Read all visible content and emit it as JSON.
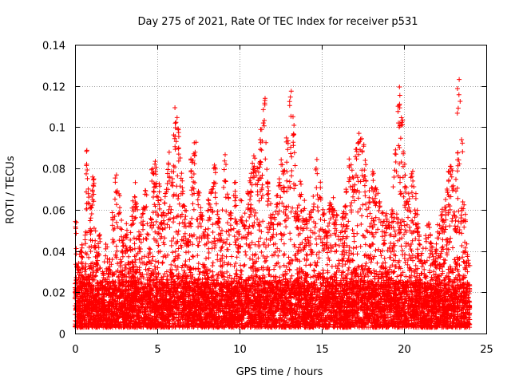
{
  "chart_data": {
    "type": "scatter",
    "title": "Day 275 of 2021, Rate Of TEC Index for receiver p531",
    "xlabel": "GPS time / hours",
    "ylabel": "ROTI / TECUs",
    "xlim": [
      0,
      25
    ],
    "ylim": [
      0,
      0.14
    ],
    "xticks": [
      0,
      5,
      10,
      15,
      20,
      25
    ],
    "xtick_labels": [
      "0",
      "5",
      "10",
      "15",
      "20",
      "25"
    ],
    "yticks": [
      0,
      0.02,
      0.04,
      0.06,
      0.08,
      0.1,
      0.12,
      0.14
    ],
    "ytick_labels": [
      "0",
      "0.02",
      "0.04",
      "0.06",
      "0.08",
      "0.1",
      "0.12",
      "0.14"
    ],
    "grid": true,
    "marker": "plus",
    "color": "#ff0000",
    "series": [
      {
        "x": [
          0.05,
          0.2,
          0.4,
          0.55,
          0.7,
          0.9,
          1.1,
          1.3,
          1.5,
          1.7,
          1.9,
          2.1,
          2.3,
          2.5,
          2.7,
          2.9,
          3.1,
          3.3,
          3.5,
          3.7,
          3.9,
          4.1,
          4.3,
          4.5,
          4.7,
          4.9,
          5.1,
          5.3,
          5.5,
          5.7,
          5.9,
          6.1,
          6.3,
          6.5,
          6.7,
          6.9,
          7.1,
          7.3,
          7.5,
          7.7,
          7.9,
          8.1,
          8.3,
          8.5,
          8.7,
          8.9,
          9.1,
          9.3,
          9.5,
          9.7,
          9.9,
          10.1,
          10.3,
          10.5,
          10.7,
          10.9,
          11.1,
          11.3,
          11.5,
          11.7,
          11.9,
          12.1,
          12.3,
          12.5,
          12.7,
          12.9,
          13.1,
          13.3,
          13.5,
          13.7,
          13.9,
          14.1,
          14.3,
          14.5,
          14.7,
          14.9,
          15.1,
          15.3,
          15.5,
          15.7,
          15.9,
          16.1,
          16.3,
          16.5,
          16.7,
          16.9,
          17.1,
          17.3,
          17.5,
          17.7,
          17.9,
          18.1,
          18.3,
          18.5,
          18.7,
          18.9,
          19.1,
          19.3,
          19.5,
          19.7,
          19.9,
          20.1,
          20.3,
          20.5,
          20.7,
          20.9,
          21.1,
          21.3,
          21.5,
          21.7,
          21.9,
          22.1,
          22.3,
          22.5,
          22.7,
          22.9,
          23.1,
          23.3,
          23.5,
          23.7,
          23.9
        ],
        "y": [
          0.055,
          0.035,
          0.045,
          0.025,
          0.093,
          0.06,
          0.077,
          0.04,
          0.05,
          0.03,
          0.045,
          0.035,
          0.06,
          0.08,
          0.07,
          0.045,
          0.055,
          0.04,
          0.065,
          0.075,
          0.05,
          0.06,
          0.07,
          0.045,
          0.08,
          0.085,
          0.075,
          0.06,
          0.07,
          0.09,
          0.085,
          0.11,
          0.1,
          0.08,
          0.06,
          0.05,
          0.085,
          0.095,
          0.07,
          0.06,
          0.05,
          0.065,
          0.07,
          0.085,
          0.06,
          0.05,
          0.09,
          0.07,
          0.06,
          0.075,
          0.05,
          0.065,
          0.06,
          0.07,
          0.08,
          0.09,
          0.08,
          0.1,
          0.12,
          0.075,
          0.065,
          0.06,
          0.07,
          0.085,
          0.08,
          0.1,
          0.125,
          0.11,
          0.06,
          0.075,
          0.065,
          0.055,
          0.06,
          0.07,
          0.085,
          0.075,
          0.06,
          0.05,
          0.065,
          0.07,
          0.06,
          0.05,
          0.06,
          0.07,
          0.085,
          0.08,
          0.09,
          0.1,
          0.095,
          0.085,
          0.07,
          0.08,
          0.075,
          0.065,
          0.06,
          0.06,
          0.055,
          0.065,
          0.095,
          0.12,
          0.105,
          0.075,
          0.07,
          0.08,
          0.07,
          0.055,
          0.04,
          0.05,
          0.055,
          0.045,
          0.04,
          0.055,
          0.06,
          0.065,
          0.08,
          0.085,
          0.06,
          0.13,
          0.1,
          0.06,
          0.04
        ],
        "baseline_min": 0.003,
        "baseline_max": 0.025
      }
    ]
  }
}
